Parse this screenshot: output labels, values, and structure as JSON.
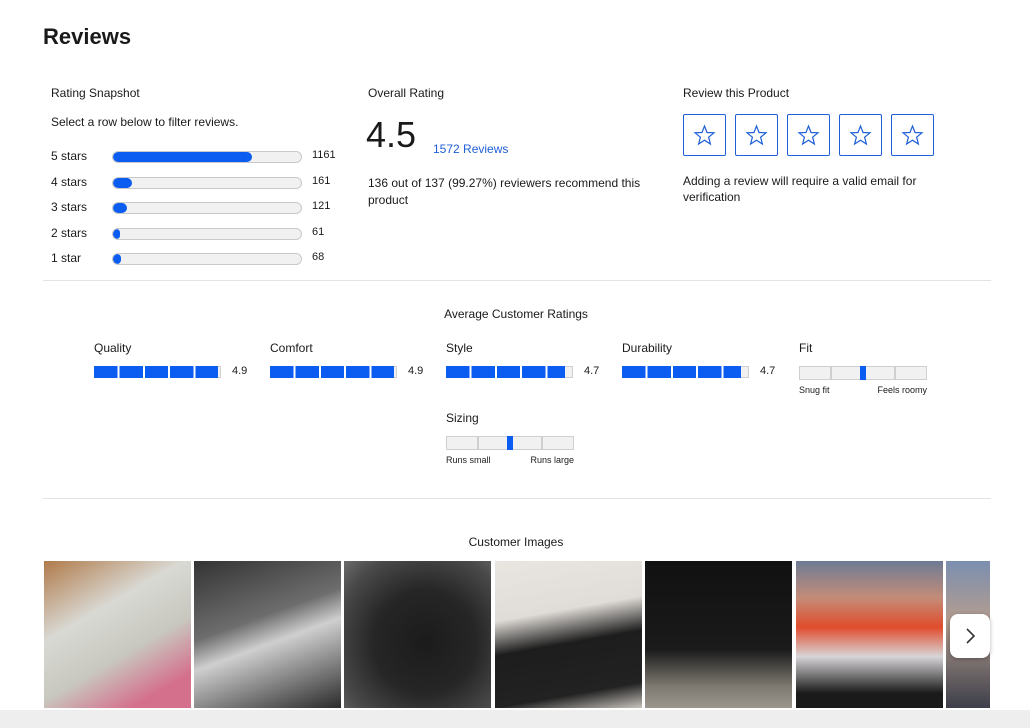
{
  "header": {
    "title": "Reviews"
  },
  "snapshot": {
    "title": "Rating Snapshot",
    "hint": "Select a row below to filter reviews.",
    "rows": [
      {
        "label": "5 stars",
        "count": 1161
      },
      {
        "label": "4 stars",
        "count": 161
      },
      {
        "label": "3 stars",
        "count": 121
      },
      {
        "label": "2 stars",
        "count": 61
      },
      {
        "label": "1 star",
        "count": 68
      }
    ]
  },
  "overall": {
    "title": "Overall Rating",
    "rating": 4.5,
    "reviews_link": "1572 Reviews",
    "recommend": "136 out of 137 (99.27%) reviewers recommend this product"
  },
  "review_product": {
    "title": "Review this Product",
    "note": "Adding a review will require a valid email for verification"
  },
  "averages": {
    "title": "Average Customer Ratings",
    "segments": 5,
    "items": [
      {
        "label": "Quality",
        "value": 4.9
      },
      {
        "label": "Comfort",
        "value": 4.9
      },
      {
        "label": "Style",
        "value": 4.7
      },
      {
        "label": "Durability",
        "value": 4.7
      }
    ],
    "sliders": [
      {
        "label": "Fit",
        "low": "Snug fit",
        "high": "Feels roomy",
        "segments": 4,
        "position": 0.5
      },
      {
        "label": "Sizing",
        "low": "Runs small",
        "high": "Runs large",
        "segments": 4,
        "position": 0.5
      }
    ]
  },
  "images": {
    "title": "Customer Images"
  }
}
